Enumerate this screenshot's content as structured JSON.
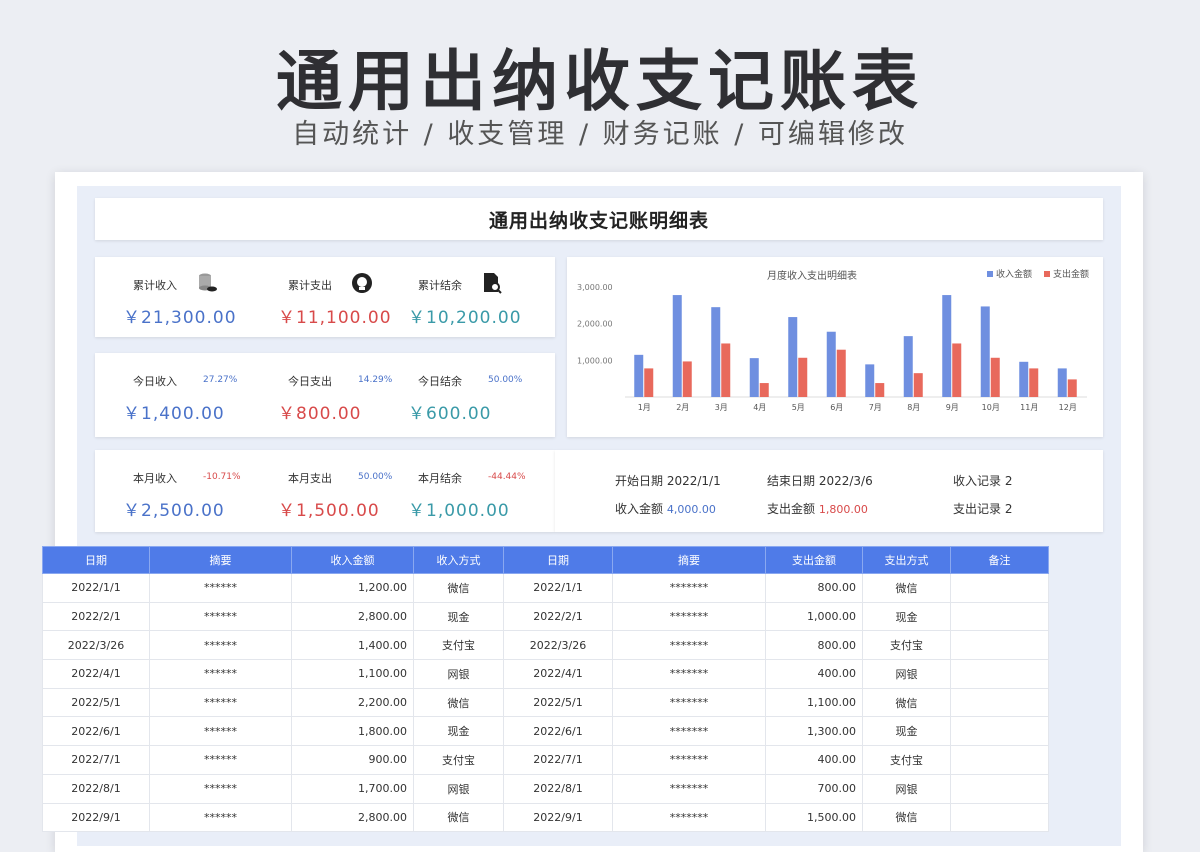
{
  "hero": {
    "title": "通用出纳收支记账表",
    "subtitle": "自动统计 / 收支管理 / 财务记账 / 可编辑修改"
  },
  "sheet": {
    "title": "通用出纳收支记账明细表"
  },
  "cumulative": {
    "income": {
      "label": "累计收入",
      "value": "￥21,300.00",
      "icon": "coins-stack-icon"
    },
    "expense": {
      "label": "累计支出",
      "value": "￥11,100.00",
      "icon": "wallet-badge-icon"
    },
    "balance": {
      "label": "累计结余",
      "value": "￥10,200.00",
      "icon": "document-search-icon"
    }
  },
  "today": {
    "income": {
      "label": "今日收入",
      "pct": "27.27%",
      "value": "￥1,400.00"
    },
    "expense": {
      "label": "今日支出",
      "pct": "14.29%",
      "value": "￥800.00"
    },
    "balance": {
      "label": "今日结余",
      "pct": "50.00%",
      "value": "￥600.00"
    }
  },
  "month": {
    "income": {
      "label": "本月收入",
      "pct": "-10.71%",
      "value": "￥2,500.00"
    },
    "expense": {
      "label": "本月支出",
      "pct": "50.00%",
      "value": "￥1,500.00"
    },
    "balance": {
      "label": "本月结余",
      "pct": "-44.44%",
      "value": "￥1,000.00"
    }
  },
  "range": {
    "start_label": "开始日期",
    "start_value": "2022/1/1",
    "end_label": "结束日期",
    "end_value": "2022/3/6",
    "income_count_label": "收入记录",
    "income_count_value": "2",
    "income_amount_label": "收入金额",
    "income_amount_value": "4,000.00",
    "expense_amount_label": "支出金额",
    "expense_amount_value": "1,800.00",
    "expense_count_label": "支出记录",
    "expense_count_value": "2"
  },
  "colors": {
    "income": "#6f8fe0",
    "expense": "#e8695c",
    "header": "#4f7be8"
  },
  "chart_data": {
    "type": "bar",
    "title": "月度收入支出明细表",
    "categories": [
      "1月",
      "2月",
      "3月",
      "4月",
      "5月",
      "6月",
      "7月",
      "8月",
      "9月",
      "10月",
      "11月",
      "12月"
    ],
    "series": [
      {
        "name": "收入金额",
        "values": [
          1150,
          2780,
          2450,
          1060,
          2180,
          1780,
          890,
          1660,
          2780,
          2470,
          960,
          780
        ]
      },
      {
        "name": "支出金额",
        "values": [
          780,
          970,
          1460,
          380,
          1070,
          1290,
          380,
          650,
          1460,
          1070,
          780,
          480
        ]
      }
    ],
    "yticks": [
      "3,000.00",
      "2,000.00",
      "1,000.00"
    ],
    "ylim": [
      0,
      3000
    ],
    "legend": "top-right"
  },
  "table": {
    "headers": [
      "日期",
      "摘要",
      "收入金额",
      "收入方式",
      "日期",
      "摘要",
      "支出金额",
      "支出方式",
      "备注"
    ],
    "rows": [
      [
        "2022/1/1",
        "******",
        "1,200.00",
        "微信",
        "2022/1/1",
        "*******",
        "800.00",
        "微信",
        ""
      ],
      [
        "2022/2/1",
        "******",
        "2,800.00",
        "现金",
        "2022/2/1",
        "*******",
        "1,000.00",
        "现金",
        ""
      ],
      [
        "2022/3/26",
        "******",
        "1,400.00",
        "支付宝",
        "2022/3/26",
        "*******",
        "800.00",
        "支付宝",
        ""
      ],
      [
        "2022/4/1",
        "******",
        "1,100.00",
        "网银",
        "2022/4/1",
        "*******",
        "400.00",
        "网银",
        ""
      ],
      [
        "2022/5/1",
        "******",
        "2,200.00",
        "微信",
        "2022/5/1",
        "*******",
        "1,100.00",
        "微信",
        ""
      ],
      [
        "2022/6/1",
        "******",
        "1,800.00",
        "现金",
        "2022/6/1",
        "*******",
        "1,300.00",
        "现金",
        ""
      ],
      [
        "2022/7/1",
        "******",
        "900.00",
        "支付宝",
        "2022/7/1",
        "*******",
        "400.00",
        "支付宝",
        ""
      ],
      [
        "2022/8/1",
        "******",
        "1,700.00",
        "网银",
        "2022/8/1",
        "*******",
        "700.00",
        "网银",
        ""
      ],
      [
        "2022/9/1",
        "******",
        "2,800.00",
        "微信",
        "2022/9/1",
        "*******",
        "1,500.00",
        "微信",
        ""
      ]
    ]
  }
}
